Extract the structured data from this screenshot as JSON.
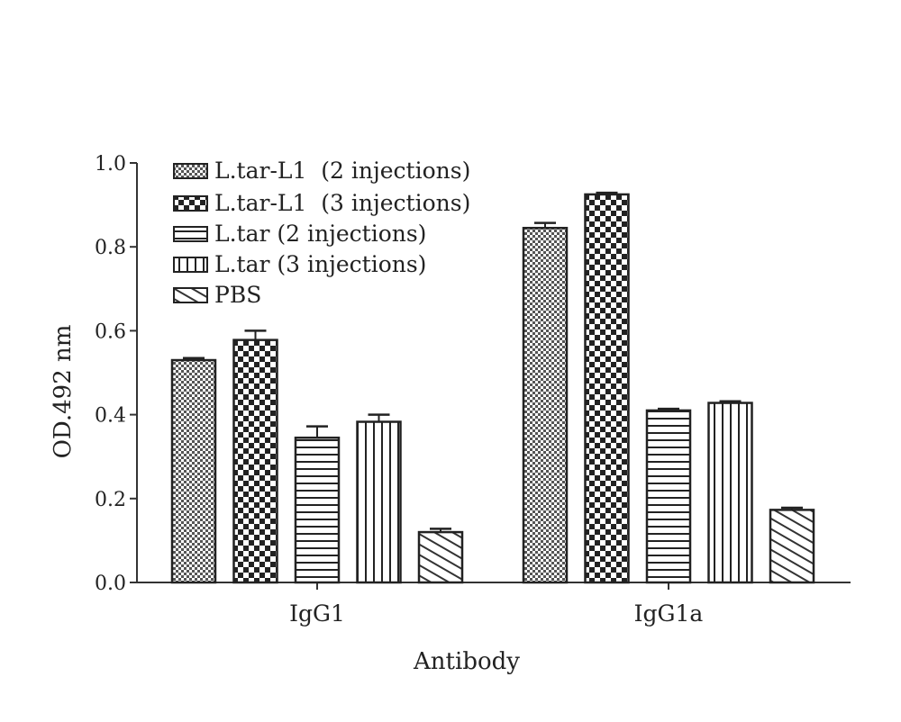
{
  "chart_data": {
    "type": "bar",
    "xlabel": "Antibody",
    "ylabel": "OD.492 nm",
    "ylim": [
      0,
      1.0
    ],
    "yticks": [
      "0.0",
      "0.2",
      "0.4",
      "0.6",
      "0.8",
      "1.0"
    ],
    "categories": [
      "IgG1",
      "IgG1a"
    ],
    "legend_position": "top-left",
    "grid": false,
    "series": [
      {
        "name": "L.tar-L1  (2 injections)",
        "pattern": "fine-checker",
        "values": [
          0.53,
          0.845
        ],
        "errors": [
          0.005,
          0.012
        ]
      },
      {
        "name": "L.tar-L1  (3 injections)",
        "pattern": "checker",
        "values": [
          0.578,
          0.925
        ],
        "errors": [
          0.022,
          0.004
        ]
      },
      {
        "name": "L.tar (2 injections)",
        "pattern": "horizontal",
        "values": [
          0.345,
          0.41
        ],
        "errors": [
          0.027,
          0.004
        ]
      },
      {
        "name": "L.tar (3 injections)",
        "pattern": "vertical",
        "values": [
          0.383,
          0.428
        ],
        "errors": [
          0.017,
          0.004
        ]
      },
      {
        "name": "PBS",
        "pattern": "diagonal",
        "values": [
          0.12,
          0.173
        ],
        "errors": [
          0.008,
          0.005
        ]
      }
    ]
  }
}
